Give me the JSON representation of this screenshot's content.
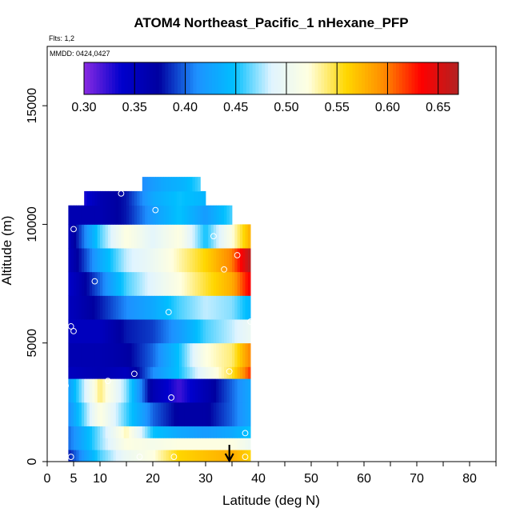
{
  "chart_data": {
    "type": "heatmap",
    "title": "ATOM4 Northeast_Pacific_1 nHexane_PFP",
    "flights_label": "Flts: 1,2",
    "dates_label": "MMDD: 0424,0427",
    "xlabel": "Latitude (deg N)",
    "ylabel": "Altitude (m)",
    "xlim": [
      0,
      85
    ],
    "ylim": [
      0,
      17500
    ],
    "x_ticks": [
      0,
      5,
      10,
      20,
      30,
      40,
      50,
      60,
      70,
      80
    ],
    "y_ticks": [
      0,
      5000,
      10000,
      15000
    ],
    "colorbar": {
      "min": 0.3,
      "max": 0.67,
      "ticks": [
        "0.30",
        "0.35",
        "0.40",
        "0.45",
        "0.50",
        "0.55",
        "0.60",
        "0.65"
      ],
      "colors": [
        "#8a2be2",
        "#0000cd",
        "#0000a0",
        "#1e90ff",
        "#00bfff",
        "#e0f4ff",
        "#ffffe0",
        "#ffd700",
        "#ff8c00",
        "#ff0000",
        "#b22222"
      ]
    },
    "curtain_extent": {
      "lat_min": 4,
      "lat_max": 38.5,
      "alt_min": 0,
      "alt_max": 12000
    },
    "layers": [
      {
        "alt": [
          0,
          500
        ],
        "lat": [
          4,
          10,
          15,
          20,
          25,
          30,
          35,
          38.5
        ],
        "values": [
          0.38,
          0.46,
          0.5,
          0.52,
          0.56,
          0.57,
          0.58,
          0.56
        ]
      },
      {
        "alt": [
          500,
          1000
        ],
        "lat": [
          4,
          10,
          15,
          20,
          25,
          30,
          35,
          38.5
        ],
        "values": [
          0.4,
          0.47,
          0.52,
          0.51,
          0.52,
          0.52,
          0.52,
          0.5
        ]
      },
      {
        "alt": [
          1000,
          1500
        ],
        "lat": [
          4,
          10,
          15,
          20,
          25,
          30,
          35,
          38.5
        ],
        "values": [
          0.4,
          0.47,
          0.53,
          0.45,
          0.43,
          0.42,
          0.43,
          0.45
        ]
      },
      {
        "alt": [
          1500,
          2500
        ],
        "lat": [
          4,
          10,
          15,
          20,
          25,
          30,
          35,
          38.5
        ],
        "values": [
          0.41,
          0.52,
          0.46,
          0.4,
          0.37,
          0.37,
          0.4,
          0.43
        ]
      },
      {
        "alt": [
          2500,
          3500
        ],
        "lat": [
          4,
          10,
          15,
          20,
          25,
          30,
          35,
          38.5
        ],
        "values": [
          0.42,
          0.54,
          0.47,
          0.36,
          0.32,
          0.36,
          0.4,
          0.43
        ]
      },
      {
        "alt": [
          3500,
          4000
        ],
        "lat": [
          4,
          10,
          15,
          20,
          25,
          30,
          35,
          38.5
        ],
        "values": [
          0.35,
          0.36,
          0.35,
          0.41,
          0.45,
          0.5,
          0.55,
          0.62
        ]
      },
      {
        "alt": [
          4000,
          5000
        ],
        "lat": [
          4,
          10,
          15,
          20,
          25,
          30,
          35,
          38.5
        ],
        "values": [
          0.36,
          0.36,
          0.37,
          0.4,
          0.45,
          0.52,
          0.54,
          0.6
        ]
      },
      {
        "alt": [
          5000,
          6000
        ],
        "lat": [
          4,
          10,
          15,
          20,
          25,
          30,
          35,
          38.5
        ],
        "values": [
          0.35,
          0.35,
          0.38,
          0.39,
          0.42,
          0.46,
          0.48,
          0.5
        ]
      },
      {
        "alt": [
          6000,
          7000
        ],
        "lat": [
          4,
          10,
          15,
          20,
          25,
          30,
          35,
          38.5
        ],
        "values": [
          0.35,
          0.38,
          0.41,
          0.43,
          0.46,
          0.48,
          0.47,
          0.44
        ]
      },
      {
        "alt": [
          7000,
          8000
        ],
        "lat": [
          4,
          10,
          15,
          20,
          25,
          30,
          35,
          38.5
        ],
        "values": [
          0.34,
          0.4,
          0.46,
          0.49,
          0.52,
          0.55,
          0.58,
          0.64
        ]
      },
      {
        "alt": [
          8000,
          9000
        ],
        "lat": [
          4,
          10,
          15,
          20,
          25,
          30,
          35,
          38.5
        ],
        "values": [
          0.35,
          0.43,
          0.48,
          0.5,
          0.53,
          0.56,
          0.6,
          0.67
        ]
      },
      {
        "alt": [
          9000,
          10000
        ],
        "lat": [
          4,
          10,
          15,
          20,
          25,
          30,
          35,
          38.5
        ],
        "values": [
          0.35,
          0.46,
          0.52,
          0.49,
          0.52,
          0.45,
          0.52,
          0.58
        ]
      },
      {
        "alt": [
          10000,
          10800
        ],
        "lat": [
          4,
          10,
          15,
          20,
          25,
          30,
          35
        ],
        "values": [
          0.36,
          0.36,
          0.38,
          0.42,
          0.45,
          0.42,
          0.46
        ]
      },
      {
        "alt": [
          10800,
          11400
        ],
        "lat": [
          7,
          10,
          15,
          20,
          25,
          30
        ],
        "values": [
          0.33,
          0.36,
          0.38,
          0.43,
          0.45,
          0.44
        ]
      },
      {
        "alt": [
          11400,
          12000
        ],
        "lat": [
          18,
          22,
          26,
          29
        ],
        "values": [
          0.41,
          0.43,
          0.44,
          0.46
        ]
      }
    ],
    "sample_points": [
      {
        "lat": 3.5,
        "alt": 3200
      },
      {
        "lat": 4.5,
        "alt": 5700
      },
      {
        "lat": 5.0,
        "alt": 5500
      },
      {
        "lat": 4.5,
        "alt": 200
      },
      {
        "lat": 5.0,
        "alt": 9800
      },
      {
        "lat": 9.0,
        "alt": 7600
      },
      {
        "lat": 11.5,
        "alt": 3400
      },
      {
        "lat": 14.0,
        "alt": 11300
      },
      {
        "lat": 16.5,
        "alt": 3700
      },
      {
        "lat": 17.5,
        "alt": 200
      },
      {
        "lat": 20.5,
        "alt": 10600
      },
      {
        "lat": 23.0,
        "alt": 6300
      },
      {
        "lat": 23.5,
        "alt": 2700
      },
      {
        "lat": 24.0,
        "alt": 200
      },
      {
        "lat": 31.5,
        "alt": 9500
      },
      {
        "lat": 33.5,
        "alt": 8100
      },
      {
        "lat": 34.5,
        "alt": 3800
      },
      {
        "lat": 36.0,
        "alt": 8700
      },
      {
        "lat": 37.5,
        "alt": 1200
      },
      {
        "lat": 37.5,
        "alt": 200
      },
      {
        "lat": 38.5,
        "alt": 5900
      }
    ],
    "arrow_marker": {
      "lat": 34.5
    },
    "grid": false
  }
}
